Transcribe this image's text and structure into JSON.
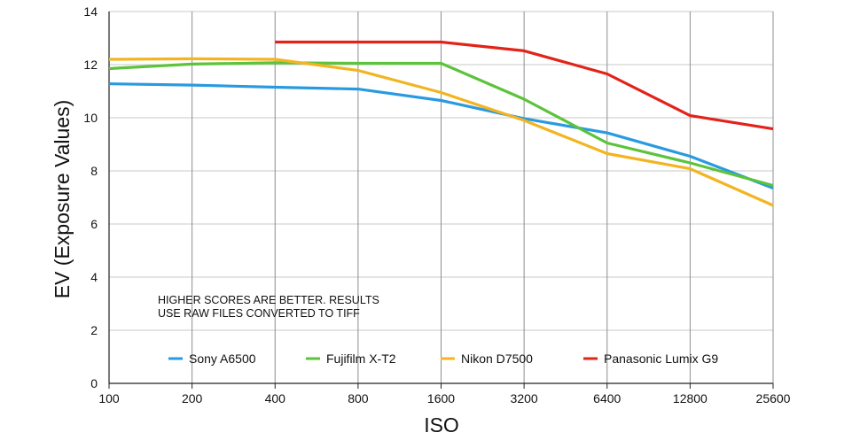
{
  "chart_data": {
    "type": "line",
    "title": "",
    "xlabel": "ISO",
    "ylabel": "EV (Exposure Values)",
    "categories": [
      "100",
      "200",
      "400",
      "800",
      "1600",
      "3200",
      "6400",
      "12800",
      "25600"
    ],
    "ylim": [
      0,
      14
    ],
    "yticks": [
      0,
      2,
      4,
      6,
      8,
      10,
      12,
      14
    ],
    "grid": true,
    "legend_position": "bottom",
    "note": [
      "HIGHER SCORES ARE BETTER. RESULTS",
      "USE RAW FILES CONVERTED TO TIFF"
    ],
    "series": [
      {
        "name": "Sony A6500",
        "color": "#2a9ae0",
        "values": [
          11.28,
          11.23,
          11.15,
          11.08,
          10.65,
          9.97,
          9.43,
          8.55,
          7.35
        ]
      },
      {
        "name": "Fujifilm X-T2",
        "color": "#5cc33c",
        "values": [
          11.85,
          12.02,
          12.07,
          12.05,
          12.05,
          10.7,
          9.05,
          8.3,
          7.45
        ]
      },
      {
        "name": "Nikon D7500",
        "color": "#f2b521",
        "values": [
          12.2,
          12.22,
          12.2,
          11.78,
          10.95,
          9.9,
          8.65,
          8.08,
          6.7
        ]
      },
      {
        "name": "Panasonic Lumix G9",
        "color": "#e2231a",
        "values": [
          null,
          null,
          12.85,
          12.85,
          12.85,
          12.52,
          11.65,
          10.08,
          9.58
        ]
      }
    ]
  }
}
